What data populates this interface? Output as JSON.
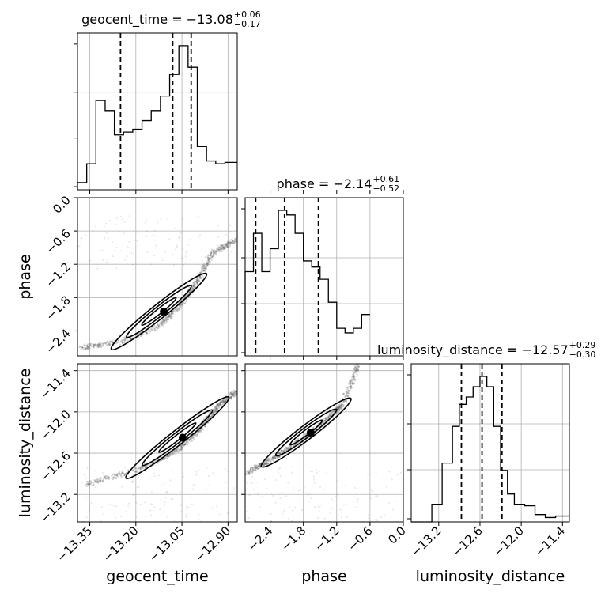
{
  "chart_data": {
    "type": "corner",
    "parameters": [
      "geocent_time",
      "phase",
      "luminosity_distance"
    ],
    "titles": [
      {
        "param": "geocent_time",
        "median": "13.08",
        "plus": "0.06",
        "minus": "0.17",
        "prefix": "geocent_time = −"
      },
      {
        "param": "phase",
        "median": "2.14",
        "plus": "0.61",
        "minus": "0.52",
        "prefix": "phase = −"
      },
      {
        "param": "luminosity_distance",
        "median": "12.57",
        "plus": "0.29",
        "minus": "0.30",
        "prefix": "luminosity_distance = −"
      }
    ],
    "ranges": {
      "geocent_time": [
        -13.39,
        -12.87
      ],
      "phase": [
        -2.85,
        0.0
      ],
      "luminosity_distance": [
        -13.6,
        -11.3
      ]
    },
    "ticks": {
      "geocent_time": {
        "values": [
          -13.35,
          -13.2,
          -13.05,
          -12.9
        ],
        "labels": [
          "−13.35",
          "−13.20",
          "−13.05",
          "−12.90"
        ]
      },
      "phase": {
        "values": [
          -2.4,
          -1.8,
          -1.2,
          -0.6,
          0.0
        ],
        "labels": [
          "−2.4",
          "−1.8",
          "−1.2",
          "−0.6",
          "0.0"
        ]
      },
      "luminosity_distance": {
        "values": [
          -13.2,
          -12.6,
          -12.0,
          -11.4
        ],
        "labels": [
          "−13.2",
          "−12.6",
          "−12.0",
          "−11.4"
        ]
      }
    },
    "quantiles": {
      "geocent_time": [
        -13.25,
        -13.08,
        -13.02
      ],
      "phase": [
        -2.66,
        -2.14,
        -1.53
      ],
      "luminosity_distance": [
        -12.87,
        -12.57,
        -12.28
      ]
    },
    "histograms": {
      "geocent_time": {
        "edges": [
          -13.39,
          -13.36,
          -13.33,
          -13.3,
          -13.27,
          -13.24,
          -13.21,
          -13.18,
          -13.15,
          -13.12,
          -13.09,
          -13.06,
          -13.03,
          -13.0,
          -12.97,
          -12.94,
          -12.91,
          -12.87
        ],
        "counts": [
          5,
          18,
          62,
          55,
          38,
          40,
          42,
          48,
          55,
          65,
          80,
          100,
          85,
          30,
          20,
          18,
          19
        ]
      },
      "phase": {
        "edges": [
          -2.85,
          -2.7,
          -2.55,
          -2.4,
          -2.25,
          -2.1,
          -1.95,
          -1.8,
          -1.65,
          -1.5,
          -1.35,
          -1.2,
          -1.05,
          -0.9,
          -0.75,
          -0.6
        ],
        "counts": [
          55,
          80,
          55,
          70,
          95,
          92,
          80,
          62,
          58,
          50,
          35,
          18,
          15,
          18,
          27
        ]
      },
      "luminosity_distance": {
        "edges": [
          -13.6,
          -13.3,
          -13.15,
          -13.0,
          -12.9,
          -12.8,
          -12.7,
          -12.6,
          -12.5,
          -12.4,
          -12.3,
          -12.2,
          -12.1,
          -11.95,
          -11.8,
          -11.65,
          -11.5,
          -11.3
        ],
        "counts": [
          0,
          12,
          40,
          65,
          80,
          85,
          92,
          99,
          92,
          65,
          35,
          19,
          12,
          11,
          5,
          3,
          4
        ]
      }
    },
    "contour_levels": 3,
    "grid": true
  }
}
